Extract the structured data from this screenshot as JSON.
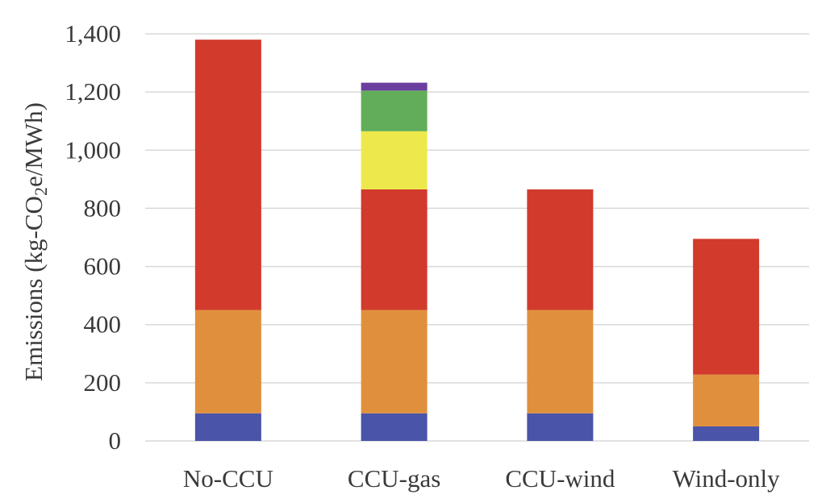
{
  "chart_data": {
    "type": "bar",
    "stacked": true,
    "title": "",
    "xlabel": "",
    "ylabel": "Emissions (kg-CO2e/MWh)",
    "ylabel_main": "Emissions (kg-CO",
    "ylabel_sub": "2",
    "ylabel_tail": "e/MWh)",
    "ylim": [
      0,
      1400
    ],
    "yticks": [
      0,
      200,
      400,
      600,
      800,
      1000,
      1200,
      1400
    ],
    "ytick_labels": [
      "0",
      "200",
      "400",
      "600",
      "800",
      "1,000",
      "1,200",
      "1,400"
    ],
    "grid": true,
    "legend": "none",
    "categories": [
      "No-CCU",
      "CCU-gas",
      "CCU-wind",
      "Wind-only"
    ],
    "series": [
      {
        "color": "#4a54a8",
        "values": [
          95,
          95,
          95,
          50
        ]
      },
      {
        "color": "#e0903c",
        "values": [
          355,
          355,
          355,
          178
        ]
      },
      {
        "color": "#d23a2c",
        "values": [
          930,
          415,
          415,
          467
        ]
      },
      {
        "color": "#ede94c",
        "values": [
          0,
          200,
          0,
          0
        ]
      },
      {
        "color": "#62ad5a",
        "values": [
          0,
          140,
          0,
          0
        ]
      },
      {
        "color": "#6a3fa0",
        "values": [
          0,
          27,
          0,
          0
        ]
      }
    ]
  }
}
